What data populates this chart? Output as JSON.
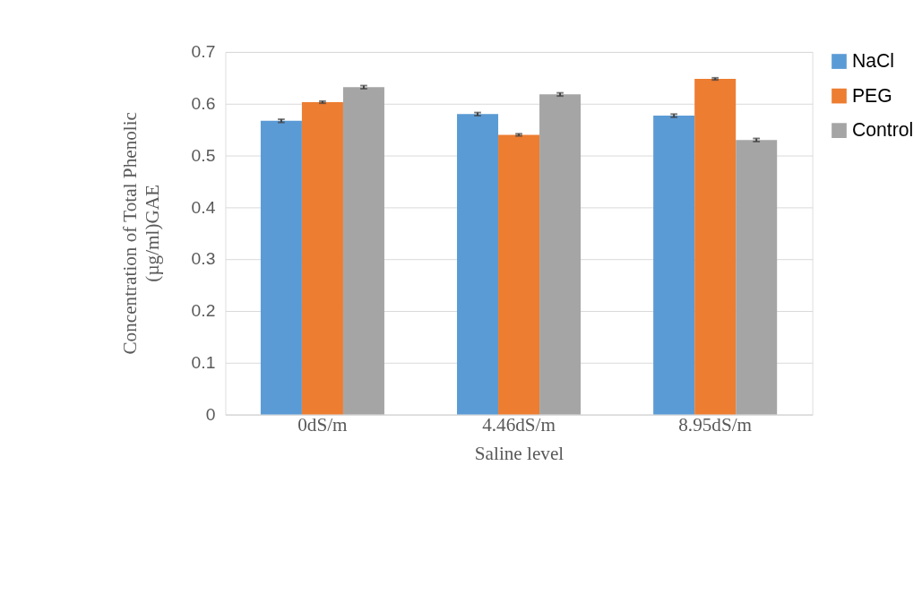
{
  "chart_data": {
    "type": "bar",
    "xlabel": "Saline level",
    "ylabel": "Concentration of Total Phenolic\n(µg/ml)GAE",
    "categories": [
      "0dS/m",
      "4.46dS/m",
      "8.95dS/m"
    ],
    "series": [
      {
        "name": "NaCl",
        "color": "#5b9bd5",
        "values": [
          0.567,
          0.58,
          0.577
        ],
        "errors": [
          0.003,
          0.003,
          0.003
        ]
      },
      {
        "name": "PEG",
        "color": "#ed7d31",
        "values": [
          0.603,
          0.54,
          0.648
        ],
        "errors": [
          0.002,
          0.002,
          0.002
        ]
      },
      {
        "name": "Control",
        "color": "#a5a5a5",
        "values": [
          0.632,
          0.618,
          0.53
        ],
        "errors": [
          0.003,
          0.003,
          0.003
        ]
      }
    ],
    "ylim": [
      0,
      0.7
    ],
    "yticks": [
      0,
      0.1,
      0.2,
      0.3,
      0.4,
      0.5,
      0.6,
      0.7
    ],
    "grid": "y",
    "legend": "right"
  }
}
